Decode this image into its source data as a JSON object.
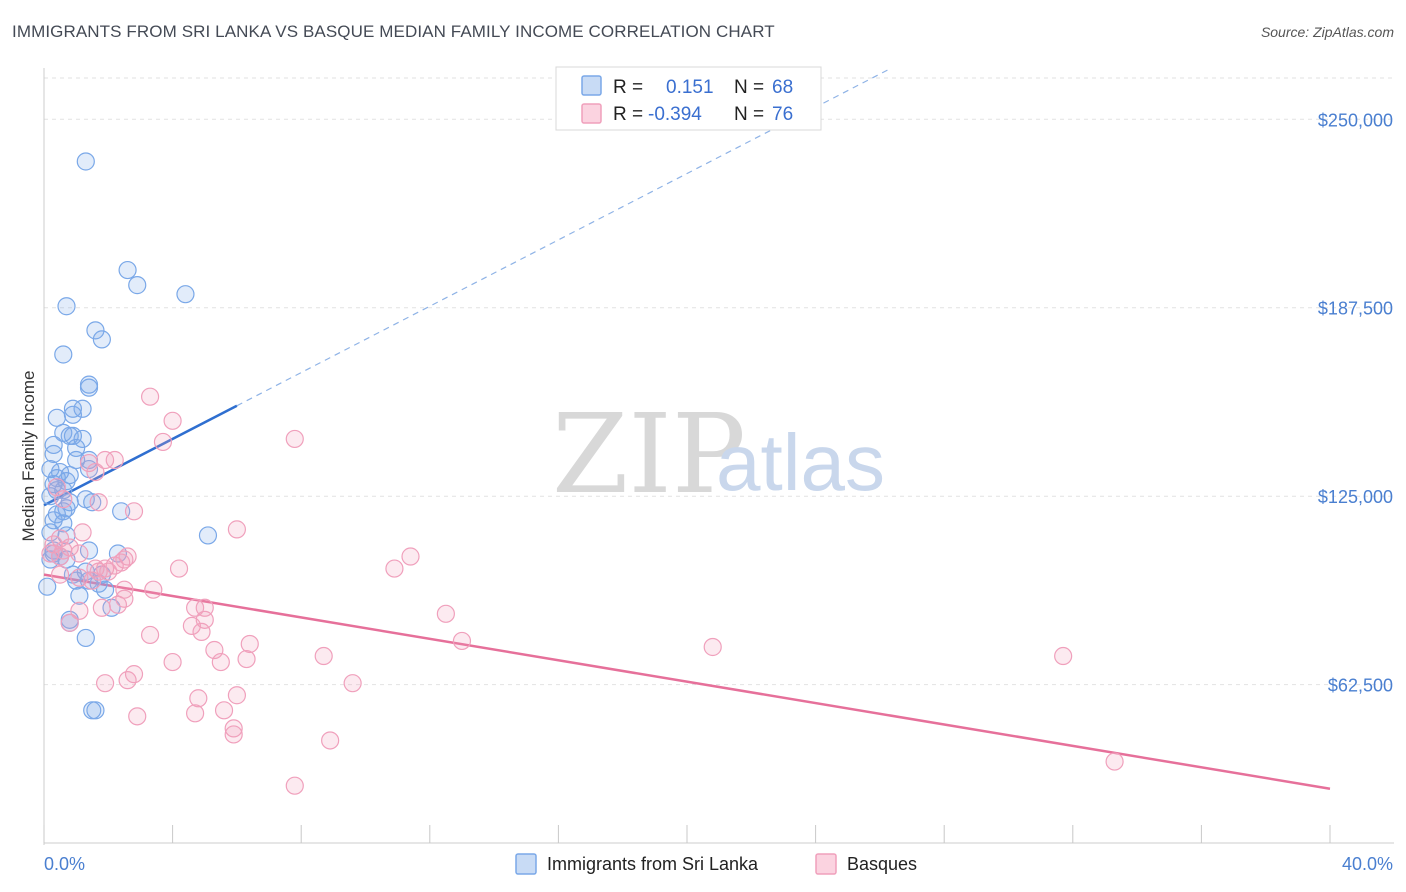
{
  "header": {
    "title": "IMMIGRANTS FROM SRI LANKA VS BASQUE MEDIAN FAMILY INCOME CORRELATION CHART",
    "source": "Source: ZipAtlas.com"
  },
  "watermark": {
    "zip": "ZIP",
    "atlas": "atlas"
  },
  "legend": {
    "rows": [
      {
        "r_label": "R =",
        "r_value": "0.151",
        "n_label": "N =",
        "n_value": "68",
        "color": "#7aa8e8"
      },
      {
        "r_label": "R =",
        "r_value": "-0.394",
        "n_label": "N =",
        "n_value": "76",
        "color": "#f0a0bc"
      }
    ]
  },
  "bottom_legend": {
    "series_a": "Immigrants from Sri Lanka",
    "series_b": "Basques"
  },
  "chart_data": {
    "type": "scatter",
    "title": "IMMIGRANTS FROM SRI LANKA VS BASQUE MEDIAN FAMILY INCOME CORRELATION CHART",
    "xlabel": "",
    "ylabel": "Median Family Income",
    "xlim": [
      0,
      40
    ],
    "ylim": [
      10000,
      267000
    ],
    "x_tick_labels": [
      "0.0%",
      "40.0%"
    ],
    "y_ticks": [
      62500,
      125000,
      187500,
      250000
    ],
    "y_tick_labels": [
      "$62,500",
      "$125,000",
      "$187,500",
      "$250,000"
    ],
    "grid": true,
    "series": [
      {
        "name": "Immigrants from Sri Lanka",
        "color": "#7aa8e8",
        "trend": {
          "x0": 0,
          "y0": 122000,
          "x1": 6.0,
          "y1": 155000,
          "dash_to_x": 40,
          "dash_to_y": 340000
        },
        "points": [
          [
            1.3,
            236000
          ],
          [
            2.6,
            200000
          ],
          [
            2.9,
            195000
          ],
          [
            4.4,
            192000
          ],
          [
            0.7,
            188000
          ],
          [
            1.6,
            180000
          ],
          [
            1.8,
            177000
          ],
          [
            0.6,
            172000
          ],
          [
            1.4,
            162000
          ],
          [
            1.4,
            161000
          ],
          [
            1.2,
            154000
          ],
          [
            0.9,
            154000
          ],
          [
            0.4,
            151000
          ],
          [
            0.9,
            152000
          ],
          [
            0.6,
            146000
          ],
          [
            0.9,
            145000
          ],
          [
            0.8,
            145000
          ],
          [
            1.2,
            144000
          ],
          [
            1.0,
            141000
          ],
          [
            0.3,
            142000
          ],
          [
            0.3,
            139000
          ],
          [
            1.4,
            137000
          ],
          [
            1.0,
            137000
          ],
          [
            1.4,
            134000
          ],
          [
            0.2,
            134000
          ],
          [
            0.5,
            133000
          ],
          [
            0.8,
            132000
          ],
          [
            0.4,
            131000
          ],
          [
            0.7,
            130000
          ],
          [
            0.3,
            129000
          ],
          [
            0.6,
            127000
          ],
          [
            0.4,
            127000
          ],
          [
            0.2,
            125000
          ],
          [
            1.3,
            124000
          ],
          [
            1.5,
            123000
          ],
          [
            0.8,
            123000
          ],
          [
            0.7,
            121000
          ],
          [
            2.4,
            120000
          ],
          [
            0.6,
            120000
          ],
          [
            0.4,
            119000
          ],
          [
            0.3,
            117000
          ],
          [
            0.6,
            116000
          ],
          [
            0.2,
            113000
          ],
          [
            0.7,
            112000
          ],
          [
            5.1,
            112000
          ],
          [
            0.3,
            107000
          ],
          [
            1.4,
            107000
          ],
          [
            2.3,
            106000
          ],
          [
            0.2,
            104000
          ],
          [
            0.3,
            106000
          ],
          [
            0.5,
            105000
          ],
          [
            0.7,
            104000
          ],
          [
            1.3,
            100000
          ],
          [
            0.9,
            99000
          ],
          [
            1.8,
            99000
          ],
          [
            1.0,
            97000
          ],
          [
            1.4,
            97000
          ],
          [
            1.7,
            96000
          ],
          [
            0.1,
            95000
          ],
          [
            1.9,
            94000
          ],
          [
            1.1,
            92000
          ],
          [
            2.1,
            88000
          ],
          [
            0.8,
            84000
          ],
          [
            0.8,
            83000
          ],
          [
            1.3,
            78000
          ],
          [
            1.5,
            54000
          ],
          [
            1.6,
            54000
          ]
        ]
      },
      {
        "name": "Basques",
        "color": "#f0a0bc",
        "trend": {
          "x0": 0,
          "y0": 99000,
          "x1": 40,
          "y1": 28000
        },
        "points": [
          [
            3.3,
            158000
          ],
          [
            4.0,
            150000
          ],
          [
            7.8,
            144000
          ],
          [
            3.7,
            143000
          ],
          [
            1.9,
            137000
          ],
          [
            2.2,
            137000
          ],
          [
            1.4,
            136000
          ],
          [
            1.6,
            133000
          ],
          [
            0.4,
            128000
          ],
          [
            0.6,
            124000
          ],
          [
            1.7,
            123000
          ],
          [
            2.8,
            120000
          ],
          [
            6.0,
            114000
          ],
          [
            1.2,
            113000
          ],
          [
            0.5,
            111000
          ],
          [
            0.3,
            109000
          ],
          [
            0.8,
            108000
          ],
          [
            0.6,
            107000
          ],
          [
            1.1,
            106000
          ],
          [
            0.5,
            105000
          ],
          [
            0.2,
            106000
          ],
          [
            11.4,
            105000
          ],
          [
            2.6,
            105000
          ],
          [
            2.5,
            104000
          ],
          [
            2.4,
            103000
          ],
          [
            2.2,
            102000
          ],
          [
            1.9,
            101000
          ],
          [
            1.7,
            100000
          ],
          [
            1.6,
            101000
          ],
          [
            10.9,
            101000
          ],
          [
            4.2,
            101000
          ],
          [
            2.0,
            100000
          ],
          [
            0.5,
            99000
          ],
          [
            1.1,
            98000
          ],
          [
            1.5,
            97000
          ],
          [
            3.4,
            94000
          ],
          [
            2.5,
            94000
          ],
          [
            2.5,
            91000
          ],
          [
            2.3,
            89000
          ],
          [
            5.0,
            88000
          ],
          [
            4.7,
            88000
          ],
          [
            1.8,
            88000
          ],
          [
            1.1,
            87000
          ],
          [
            12.5,
            86000
          ],
          [
            5.0,
            84000
          ],
          [
            4.6,
            82000
          ],
          [
            0.8,
            83000
          ],
          [
            4.9,
            80000
          ],
          [
            3.3,
            79000
          ],
          [
            6.4,
            76000
          ],
          [
            13.0,
            77000
          ],
          [
            20.8,
            75000
          ],
          [
            5.3,
            74000
          ],
          [
            8.7,
            72000
          ],
          [
            31.7,
            72000
          ],
          [
            6.3,
            71000
          ],
          [
            4.0,
            70000
          ],
          [
            5.5,
            70000
          ],
          [
            2.8,
            66000
          ],
          [
            2.6,
            64000
          ],
          [
            1.9,
            63000
          ],
          [
            9.6,
            63000
          ],
          [
            6.0,
            59000
          ],
          [
            4.8,
            58000
          ],
          [
            5.6,
            54000
          ],
          [
            4.7,
            53000
          ],
          [
            2.9,
            52000
          ],
          [
            5.9,
            48000
          ],
          [
            5.9,
            46000
          ],
          [
            8.9,
            44000
          ],
          [
            33.3,
            37000
          ],
          [
            7.8,
            29000
          ]
        ]
      }
    ]
  }
}
